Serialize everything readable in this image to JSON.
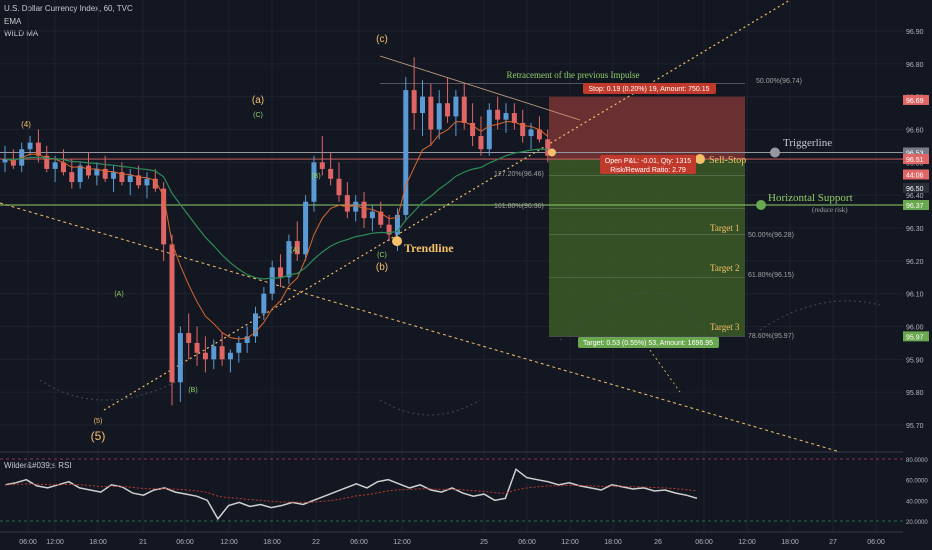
{
  "header": {
    "symbol_line": "U.S. Dollar Currency Index, 60, TVC",
    "indicators": [
      "EMA",
      "WILD MA"
    ],
    "rsi_title": "Wilder&#039;s RSI"
  },
  "colors": {
    "background": "#131722",
    "up_candle": "#5b9bd5",
    "down_candle": "#e06666",
    "ema": "#d9662e",
    "wild_ma": "#2e8b57",
    "trendline": "#f5c06a",
    "stop_zone": "#8b3a3a",
    "target_zone": "#4a6b2f",
    "rsi_line": "#d0d0d0",
    "rsi_ma": "#c0392b"
  },
  "chart_data": {
    "type": "candlestick",
    "title": "U.S. Dollar Currency Index, 60, TVC",
    "ylim": [
      95.65,
      97.05
    ],
    "yticks": [
      "96.90",
      "96.80",
      "96.70",
      "96.60",
      "96.50",
      "96.40",
      "96.30",
      "96.20",
      "96.10",
      "96.00",
      "95.90",
      "95.80",
      "95.70"
    ],
    "xticks": [
      "06:00",
      "12:00",
      "18:00",
      "21",
      "06:00",
      "12:00",
      "18:00",
      "22",
      "06:00",
      "12:00",
      "25",
      "06:00",
      "12:00",
      "18:00",
      "26",
      "06:00",
      "12:00",
      "18:00",
      "27",
      "06:00"
    ],
    "price_tags": [
      {
        "label": "96.69",
        "value": 96.69,
        "color": "#e06666"
      },
      {
        "label": "96.53",
        "value": 96.53,
        "color": "#787b86"
      },
      {
        "label": "96.51",
        "value": 96.51,
        "color": "#e06666"
      },
      {
        "label": "44:06",
        "value": 96.463,
        "color": "#e06666"
      },
      {
        "label": "96.50",
        "value": 96.422,
        "color": "#2a2e39"
      },
      {
        "label": "96.37",
        "value": 96.37,
        "color": "#6aa84f"
      },
      {
        "label": "95.97",
        "value": 95.97,
        "color": "#6aa84f"
      }
    ],
    "annotations": {
      "retracement_title": "Retracement of the previous Impulse",
      "fib_50_top": "50.00%(96.74)",
      "stop_box": "Stop: 0.19 (0.20%) 19, Amount: 750.15",
      "pnl_line1": "Open P&L: -0.01, Qty: 1315",
      "pnl_line2": "Risk/Reward Ratio: 2.79",
      "fib_127": "127.20%(96.46)",
      "fib_161": "161.80%(96.36)",
      "target1": "Target 1",
      "target1_fib": "50.00%(96.28)",
      "target2": "Target 2",
      "target2_fib": "61.80%(96.15)",
      "target3": "Target 3",
      "target3_fib": "78.60%(95.97)",
      "target_box": "Target: 0.53 (0.55%) 53, Amount: 1696.95",
      "sell_stop": "Sell-Stop",
      "triggerline": "Triggerline",
      "horizontal_support": "Horizontal Support",
      "reduce_risk": "(reduce risk)",
      "trendline": "Trendline"
    },
    "wave_labels": [
      {
        "text": "(4)",
        "color": "#f5c06a"
      },
      {
        "text": "(5)",
        "color": "#f5c06a"
      },
      {
        "text": "(5)",
        "color": "#f5c06a"
      },
      {
        "text": "(A)",
        "color": "#8fce67"
      },
      {
        "text": "(B)",
        "color": "#8fce67"
      },
      {
        "text": "(a)",
        "color": "#f5c06a"
      },
      {
        "text": "(C)",
        "color": "#8fce67"
      },
      {
        "text": "(A)",
        "color": "#8fce67"
      },
      {
        "text": "(B)",
        "color": "#8fce67"
      },
      {
        "text": "(c)",
        "color": "#f5c06a"
      },
      {
        "text": "(C)",
        "color": "#8fce67"
      },
      {
        "text": "(b)",
        "color": "#f5c06a"
      }
    ],
    "rsi": {
      "ylim": [
        15,
        85
      ],
      "yticks": [
        "80.0000",
        "60.0000",
        "40.0000",
        "20.0000"
      ]
    }
  }
}
